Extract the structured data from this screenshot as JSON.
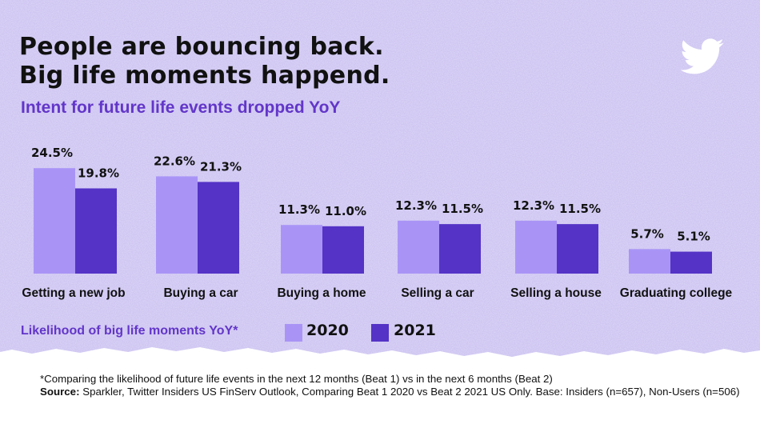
{
  "header": {
    "title_line_1": "People are bouncing back.",
    "title_line_2": "Big life moments happend.",
    "subtitle": "Intent for future life events dropped YoY",
    "logo_icon": "twitter-bird-icon"
  },
  "colors": {
    "background": "#cfc6f2",
    "series_2020": "#a994f6",
    "series_2021": "#5433c6",
    "subtitle": "#6236c9",
    "text": "#111111"
  },
  "chart_data": {
    "type": "bar",
    "categories": [
      "Getting a new job",
      "Buying a car",
      "Buying a home",
      "Selling a car",
      "Selling a house",
      "Graduating college"
    ],
    "series": [
      {
        "name": "2020",
        "values": [
          24.5,
          22.6,
          11.3,
          12.3,
          12.3,
          5.7
        ],
        "labels": [
          "24.5%",
          "22.6%",
          "11.3%",
          "12.3%",
          "12.3%",
          "5.7%"
        ]
      },
      {
        "name": "2021",
        "values": [
          19.8,
          21.3,
          11.0,
          11.5,
          11.5,
          5.1
        ],
        "labels": [
          "19.8%",
          "21.3%",
          "11.0%",
          "11.5%",
          "11.5%",
          "5.1%"
        ]
      }
    ],
    "title": "Intent for future life events dropped YoY",
    "legend_title": "Likelihood of big life moments YoY*",
    "legend": "bottom-left",
    "grid": false,
    "ylim": [
      0,
      25
    ]
  },
  "legend": {
    "title": "Likelihood of big life moments YoY*",
    "items": [
      {
        "label": "2020"
      },
      {
        "label": "2021"
      }
    ]
  },
  "footnote": {
    "note": "*Comparing the likelihood of future life events in the next 12 months (Beat 1) vs in the next 6 months (Beat 2)",
    "source_label": "Source:",
    "source_text": " Sparkler, Twitter Insiders US FinServ Outlook, Comparing Beat 1 2020 vs Beat 2 2021 US Only. Base: Insiders (n=657), Non-Users (n=506)"
  }
}
